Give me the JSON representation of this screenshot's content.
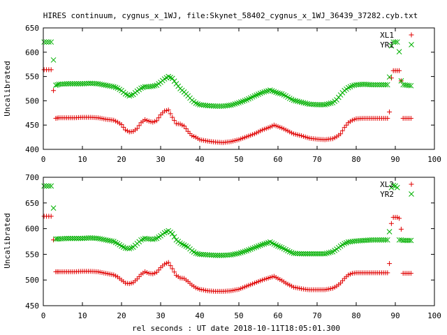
{
  "figure": {
    "title": "HIRES continuum, cygnus_x_1WJ, file:Skynet_58402_cygnus_x_1WJ_36439_37282.cyb.txt",
    "xlabel": "rel seconds : UT date 2018-10-11T18:05:01.300"
  },
  "chart_data": [
    {
      "type": "scatter",
      "title": "",
      "xlabel": "",
      "ylabel": "Uncalibrated",
      "xlim": [
        0,
        100
      ],
      "ylim": [
        400,
        650
      ],
      "x_ticks": [
        "0",
        "10",
        "20",
        "30",
        "40",
        "50",
        "60",
        "70",
        "80",
        "90",
        "100"
      ],
      "y_ticks": [
        "400",
        "450",
        "500",
        "550",
        "600",
        "650"
      ],
      "grid": false,
      "legend": "top-right",
      "series": [
        {
          "name": "XL1",
          "marker": "plus",
          "color": "#e00000",
          "x": [
            0.2,
            0.8,
            1.4,
            2.0,
            2.6,
            3.2,
            4,
            6,
            8,
            10,
            12,
            14,
            16,
            18,
            19,
            20,
            21,
            22,
            23,
            24,
            25,
            26,
            27,
            28,
            29,
            30,
            31,
            32,
            33,
            34,
            35,
            36,
            37,
            38,
            39,
            40,
            42,
            44,
            46,
            48,
            50,
            52,
            54,
            56,
            58,
            59,
            60,
            61,
            62,
            63,
            64,
            66,
            68,
            70,
            72,
            74,
            75,
            76,
            77,
            78,
            79,
            80,
            82,
            84,
            86,
            88,
            88.5,
            89,
            89.5,
            90,
            90.5,
            91,
            91.5,
            92,
            93,
            94
          ],
          "y": [
            564,
            564,
            564,
            564,
            521,
            464,
            465,
            465,
            465,
            466,
            466,
            465,
            462,
            460,
            456,
            451,
            440,
            436,
            437,
            443,
            455,
            461,
            458,
            456,
            459,
            471,
            479,
            481,
            466,
            453,
            452,
            448,
            437,
            428,
            425,
            420,
            417,
            415,
            414,
            416,
            420,
            426,
            432,
            440,
            446,
            450,
            447,
            444,
            440,
            436,
            432,
            428,
            423,
            421,
            420,
            422,
            426,
            432,
            445,
            455,
            460,
            463,
            464,
            464,
            464,
            464,
            477,
            547,
            562,
            562,
            562,
            562,
            541,
            464,
            464,
            464
          ]
        },
        {
          "name": "YR1",
          "marker": "cross",
          "color": "#00b000",
          "x": [
            0.2,
            0.8,
            1.4,
            2.0,
            2.6,
            3.2,
            4,
            6,
            8,
            10,
            12,
            14,
            16,
            18,
            19,
            20,
            21,
            22,
            23,
            24,
            25,
            26,
            27,
            28,
            29,
            30,
            31,
            32,
            33,
            34,
            35,
            36,
            37,
            38,
            39,
            40,
            42,
            44,
            46,
            48,
            50,
            52,
            54,
            56,
            58,
            59,
            60,
            61,
            62,
            63,
            64,
            66,
            68,
            70,
            72,
            74,
            75,
            76,
            77,
            78,
            79,
            80,
            82,
            84,
            86,
            88,
            88.5,
            89,
            89.5,
            90,
            90.5,
            91,
            91.5,
            92,
            93,
            94
          ],
          "y": [
            621,
            621,
            621,
            621,
            584,
            532,
            534,
            535,
            535,
            535,
            536,
            535,
            532,
            529,
            526,
            521,
            514,
            510,
            513,
            520,
            526,
            529,
            529,
            530,
            532,
            538,
            545,
            550,
            546,
            535,
            525,
            518,
            510,
            501,
            495,
            492,
            490,
            489,
            489,
            491,
            496,
            502,
            510,
            517,
            522,
            519,
            516,
            514,
            510,
            505,
            501,
            497,
            493,
            492,
            492,
            496,
            502,
            512,
            521,
            527,
            531,
            533,
            534,
            533,
            533,
            533,
            549,
            613,
            621,
            621,
            621,
            601,
            541,
            533,
            532,
            531
          ]
        }
      ]
    },
    {
      "type": "scatter",
      "title": "",
      "xlabel": "rel seconds : UT date 2018-10-11T18:05:01.300",
      "ylabel": "Uncalibrated",
      "xlim": [
        0,
        100
      ],
      "ylim": [
        450,
        700
      ],
      "x_ticks": [
        "0",
        "10",
        "20",
        "30",
        "40",
        "50",
        "60",
        "70",
        "80",
        "90",
        "100"
      ],
      "y_ticks": [
        "450",
        "500",
        "550",
        "600",
        "650",
        "700"
      ],
      "grid": false,
      "legend": "top-right",
      "series": [
        {
          "name": "XL2",
          "marker": "plus",
          "color": "#e00000",
          "x": [
            0.2,
            0.8,
            1.4,
            2.0,
            2.6,
            3.2,
            4,
            6,
            8,
            10,
            12,
            14,
            16,
            18,
            19,
            20,
            21,
            22,
            23,
            24,
            25,
            26,
            27,
            28,
            29,
            30,
            31,
            32,
            33,
            34,
            35,
            36,
            37,
            38,
            39,
            40,
            42,
            44,
            46,
            48,
            50,
            52,
            54,
            56,
            58,
            59,
            60,
            61,
            62,
            63,
            64,
            66,
            68,
            70,
            72,
            74,
            75,
            76,
            77,
            78,
            79,
            80,
            82,
            84,
            86,
            88,
            88.5,
            89,
            89.5,
            90,
            90.5,
            91,
            91.5,
            92,
            93,
            94
          ],
          "y": [
            624,
            624,
            624,
            624,
            578,
            516,
            516,
            516,
            516,
            517,
            517,
            516,
            513,
            510,
            506,
            500,
            494,
            493,
            495,
            502,
            511,
            516,
            513,
            512,
            515,
            524,
            531,
            534,
            522,
            509,
            504,
            503,
            497,
            490,
            485,
            482,
            479,
            478,
            478,
            479,
            482,
            488,
            494,
            500,
            505,
            507,
            503,
            499,
            494,
            490,
            486,
            483,
            481,
            481,
            481,
            484,
            488,
            494,
            503,
            510,
            513,
            514,
            514,
            514,
            514,
            514,
            532,
            610,
            622,
            622,
            622,
            620,
            599,
            513,
            513,
            513
          ]
        },
        {
          "name": "YR2",
          "marker": "cross",
          "color": "#00b000",
          "x": [
            0.2,
            0.8,
            1.4,
            2.0,
            2.6,
            3.2,
            4,
            6,
            8,
            10,
            12,
            14,
            16,
            18,
            19,
            20,
            21,
            22,
            23,
            24,
            25,
            26,
            27,
            28,
            29,
            30,
            31,
            32,
            33,
            34,
            35,
            36,
            37,
            38,
            39,
            40,
            42,
            44,
            46,
            48,
            50,
            52,
            54,
            56,
            58,
            59,
            60,
            61,
            62,
            63,
            64,
            66,
            68,
            70,
            72,
            74,
            75,
            76,
            77,
            78,
            79,
            80,
            82,
            84,
            86,
            88,
            88.5,
            89,
            89.5,
            90,
            90.5,
            91,
            91.5,
            92,
            93,
            94
          ],
          "y": [
            683,
            683,
            683,
            683,
            640,
            580,
            580,
            581,
            581,
            581,
            582,
            581,
            578,
            575,
            571,
            566,
            562,
            561,
            564,
            571,
            578,
            581,
            580,
            579,
            581,
            586,
            592,
            596,
            590,
            578,
            572,
            568,
            564,
            557,
            552,
            550,
            549,
            548,
            548,
            549,
            552,
            557,
            563,
            569,
            574,
            570,
            566,
            563,
            559,
            555,
            552,
            551,
            551,
            551,
            551,
            555,
            560,
            566,
            571,
            574,
            575,
            576,
            577,
            578,
            578,
            578,
            594,
            680,
            684,
            683,
            680,
            578,
            578,
            577,
            577,
            577
          ]
        }
      ]
    }
  ]
}
